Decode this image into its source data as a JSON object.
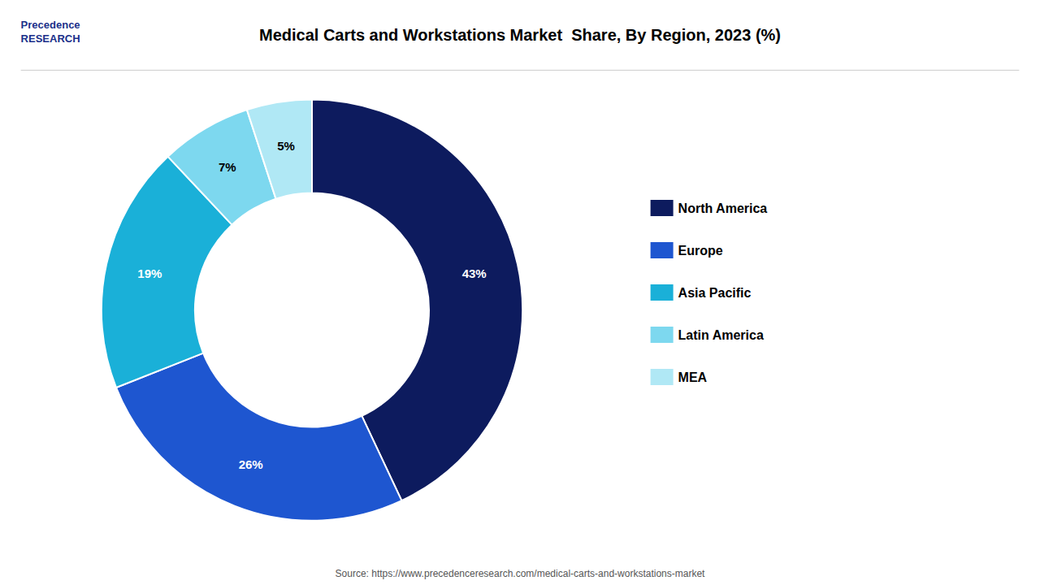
{
  "chart_data": {
    "type": "pie",
    "title": "Medical Carts and Workstations Market  Share, By Region, 2023 (%)",
    "categories": [
      "North America",
      "Europe",
      "Asia Pacific",
      "Latin America",
      "MEA"
    ],
    "values": [
      43,
      26,
      19,
      7,
      5
    ],
    "value_labels": [
      "43%",
      "26%",
      "19%",
      "7%",
      "5%"
    ],
    "colors": [
      "#0d1b5e",
      "#1e56d0",
      "#1ab0d8",
      "#7dd8ef",
      "#b0e8f5"
    ],
    "data_labels": true,
    "legend": "right",
    "annotations": [
      "Precedence\nRESEARCH",
      "Source: https://www.precedenceresearch.com/medical-carts-and-workstations-market"
    ]
  }
}
